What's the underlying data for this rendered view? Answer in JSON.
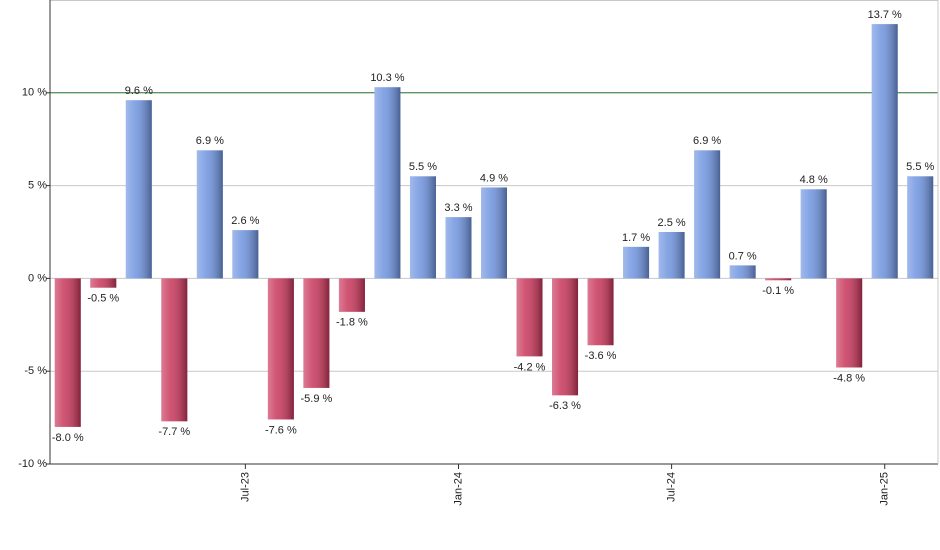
{
  "chart_data": {
    "type": "bar",
    "categories": [
      null,
      null,
      null,
      null,
      null,
      "Jul-23",
      null,
      null,
      null,
      null,
      null,
      "Jan-24",
      null,
      null,
      null,
      null,
      null,
      "Jul-24",
      null,
      null,
      null,
      null,
      null,
      "Jan-25",
      null
    ],
    "values": [
      -8.0,
      -0.5,
      9.6,
      -7.7,
      6.9,
      2.6,
      -7.6,
      -5.9,
      -1.8,
      10.3,
      5.5,
      3.3,
      4.9,
      -4.2,
      -6.3,
      -3.6,
      1.7,
      2.5,
      6.9,
      0.7,
      -0.1,
      4.8,
      -4.8,
      13.7,
      5.5
    ],
    "value_labels": [
      "-8.0 %",
      "-0.5 %",
      "9.6 %",
      "-7.7 %",
      "6.9 %",
      "2.6 %",
      "-7.6 %",
      "-5.9 %",
      "-1.8 %",
      "10.3 %",
      "5.5 %",
      "3.3 %",
      "4.9 %",
      "-4.2 %",
      "-6.3 %",
      "-3.6 %",
      "1.7 %",
      "2.5 %",
      "6.9 %",
      "0.7 %",
      "-0.1 %",
      "4.8 %",
      "-4.8 %",
      "13.7 %",
      "5.5 %"
    ],
    "positive_color": "#6f94e0",
    "negative_color": "#c8355a",
    "ylim": [
      -10,
      15
    ],
    "yticks": [
      {
        "value": -10,
        "label": "-10 %"
      },
      {
        "value": -5,
        "label": "-5 %"
      },
      {
        "value": 0,
        "label": "0 %"
      },
      {
        "value": 5,
        "label": "5 %"
      },
      {
        "value": 10,
        "label": "10 %"
      }
    ],
    "reference_line": {
      "value": 10,
      "color": "#2e7d32"
    },
    "grid": true
  }
}
